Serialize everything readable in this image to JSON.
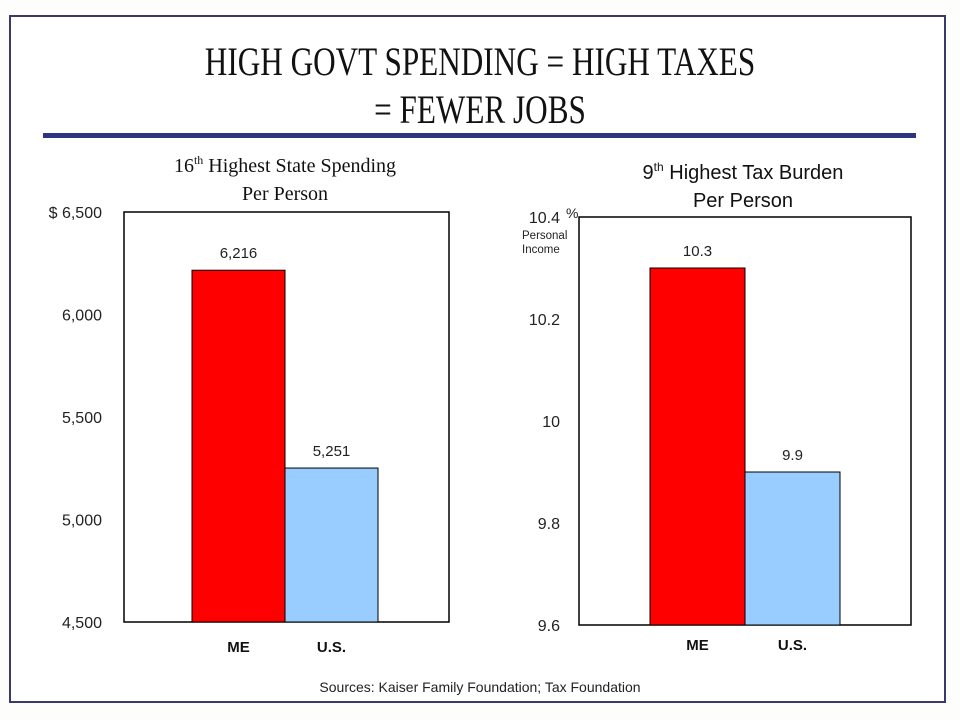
{
  "title": {
    "line1": "HIGH GOVT SPENDING = HIGH TAXES",
    "line2": "= FEWER JOBS"
  },
  "sources": "Sources:  Kaiser Family Foundation; Tax Foundation",
  "colors": {
    "me": "#ff0000",
    "us": "#99ccff",
    "rule": "#2e3580"
  },
  "chart_data": [
    {
      "type": "bar",
      "title_rank": "16",
      "title_sup": "th",
      "title_rest": " Highest State Spending",
      "title_line2": "Per Person",
      "categories": [
        "ME",
        "U.S."
      ],
      "values": [
        6216,
        5251
      ],
      "value_labels": [
        "6,216",
        "5,251"
      ],
      "ylim": [
        4500,
        6500
      ],
      "yticks": [
        4500,
        5000,
        5500,
        6000,
        6500
      ],
      "ytick_labels": [
        "4,500",
        "5,000",
        "5,500",
        "6,000",
        "$ 6,500"
      ],
      "ylabel": "",
      "grid": false
    },
    {
      "type": "bar",
      "title_rank": "9",
      "title_sup": "th",
      "title_rest": " Highest Tax Burden",
      "title_line2": "Per Person",
      "categories": [
        "ME",
        "U.S."
      ],
      "values": [
        10.3,
        9.9
      ],
      "value_labels": [
        "10.3",
        "9.9"
      ],
      "ylim": [
        9.6,
        10.4
      ],
      "yticks": [
        9.6,
        9.8,
        10.0,
        10.2,
        10.4
      ],
      "ytick_labels": [
        "9.6",
        "9.8",
        "10",
        "10.2",
        "10.4"
      ],
      "yunit": "%",
      "ylabel_lines": [
        "Personal",
        "Income"
      ],
      "grid": false
    }
  ]
}
